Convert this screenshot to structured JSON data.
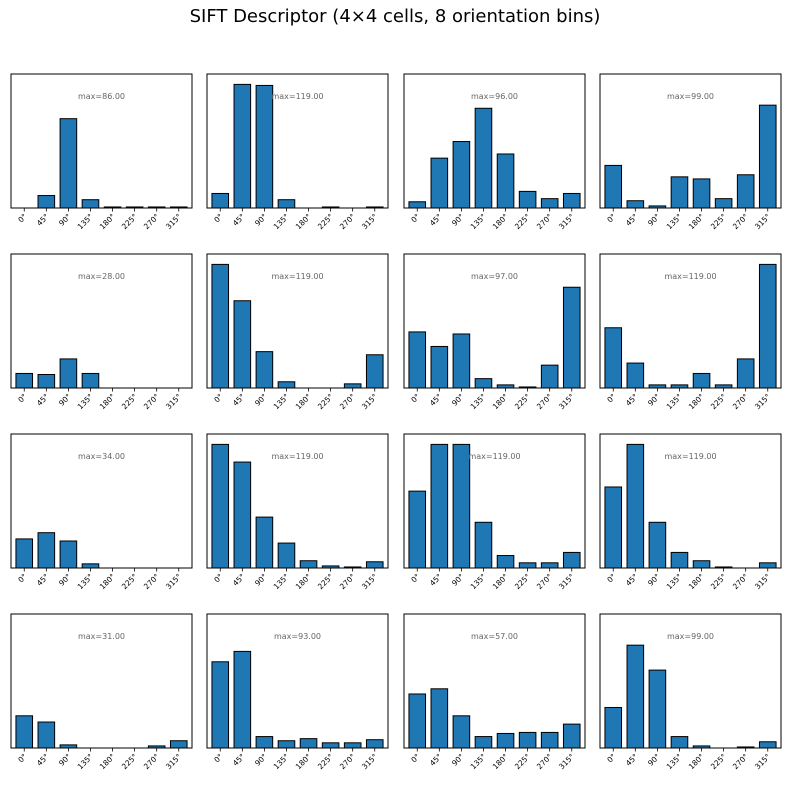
{
  "figure": {
    "title": "SIFT Descriptor (4×4 cells, 8 orientation bins)"
  },
  "style": {
    "bar_color": "#1f77b4",
    "edge_color": "#000000",
    "annotation_color": "#666666"
  },
  "chart_data": [
    {
      "type": "bar",
      "cell": "0,0",
      "categories": [
        "0°",
        "45°",
        "90°",
        "135°",
        "180°",
        "225°",
        "270°",
        "315°"
      ],
      "values": [
        0,
        12,
        86,
        8,
        1,
        1,
        1,
        1
      ],
      "annotation": "max=86.00",
      "ylim": [
        0,
        129
      ]
    },
    {
      "type": "bar",
      "cell": "0,1",
      "categories": [
        "0°",
        "45°",
        "90°",
        "135°",
        "180°",
        "225°",
        "270°",
        "315°"
      ],
      "values": [
        14,
        119,
        118,
        8,
        0,
        1,
        0,
        1
      ],
      "annotation": "max=119.00",
      "ylim": [
        0,
        129
      ]
    },
    {
      "type": "bar",
      "cell": "0,2",
      "categories": [
        "0°",
        "45°",
        "90°",
        "135°",
        "180°",
        "225°",
        "270°",
        "315°"
      ],
      "values": [
        6,
        48,
        64,
        96,
        52,
        16,
        9,
        14
      ],
      "annotation": "max=96.00",
      "ylim": [
        0,
        129
      ]
    },
    {
      "type": "bar",
      "cell": "0,3",
      "categories": [
        "0°",
        "45°",
        "90°",
        "135°",
        "180°",
        "225°",
        "270°",
        "315°"
      ],
      "values": [
        41,
        7,
        2,
        30,
        28,
        9,
        32,
        99
      ],
      "annotation": "max=99.00",
      "ylim": [
        0,
        129
      ]
    },
    {
      "type": "bar",
      "cell": "1,0",
      "categories": [
        "0°",
        "45°",
        "90°",
        "135°",
        "180°",
        "225°",
        "270°",
        "315°"
      ],
      "values": [
        14,
        13,
        28,
        14,
        0,
        0,
        0,
        0
      ],
      "annotation": "max=28.00",
      "ylim": [
        0,
        129
      ]
    },
    {
      "type": "bar",
      "cell": "1,1",
      "categories": [
        "0°",
        "45°",
        "90°",
        "135°",
        "180°",
        "225°",
        "270°",
        "315°"
      ],
      "values": [
        119,
        84,
        35,
        6,
        0,
        0,
        4,
        32
      ],
      "annotation": "max=119.00",
      "ylim": [
        0,
        129
      ]
    },
    {
      "type": "bar",
      "cell": "1,2",
      "categories": [
        "0°",
        "45°",
        "90°",
        "135°",
        "180°",
        "225°",
        "270°",
        "315°"
      ],
      "values": [
        54,
        40,
        52,
        9,
        3,
        1,
        22,
        97
      ],
      "annotation": "max=97.00",
      "ylim": [
        0,
        129
      ]
    },
    {
      "type": "bar",
      "cell": "1,3",
      "categories": [
        "0°",
        "45°",
        "90°",
        "135°",
        "180°",
        "225°",
        "270°",
        "315°"
      ],
      "values": [
        58,
        24,
        3,
        3,
        14,
        3,
        28,
        119
      ],
      "annotation": "max=119.00",
      "ylim": [
        0,
        129
      ]
    },
    {
      "type": "bar",
      "cell": "2,0",
      "categories": [
        "0°",
        "45°",
        "90°",
        "135°",
        "180°",
        "225°",
        "270°",
        "315°"
      ],
      "values": [
        28,
        34,
        26,
        4,
        0,
        0,
        0,
        0
      ],
      "annotation": "max=34.00",
      "ylim": [
        0,
        129
      ]
    },
    {
      "type": "bar",
      "cell": "2,1",
      "categories": [
        "0°",
        "45°",
        "90°",
        "135°",
        "180°",
        "225°",
        "270°",
        "315°"
      ],
      "values": [
        119,
        102,
        49,
        24,
        7,
        2,
        1,
        6
      ],
      "annotation": "max=119.00",
      "ylim": [
        0,
        129
      ]
    },
    {
      "type": "bar",
      "cell": "2,2",
      "categories": [
        "0°",
        "45°",
        "90°",
        "135°",
        "180°",
        "225°",
        "270°",
        "315°"
      ],
      "values": [
        74,
        119,
        119,
        44,
        12,
        5,
        5,
        15
      ],
      "annotation": "max=119.00",
      "ylim": [
        0,
        129
      ]
    },
    {
      "type": "bar",
      "cell": "2,3",
      "categories": [
        "0°",
        "45°",
        "90°",
        "135°",
        "180°",
        "225°",
        "270°",
        "315°"
      ],
      "values": [
        78,
        119,
        44,
        15,
        7,
        1,
        0,
        5
      ],
      "annotation": "max=119.00",
      "ylim": [
        0,
        129
      ]
    },
    {
      "type": "bar",
      "cell": "3,0",
      "categories": [
        "0°",
        "45°",
        "90°",
        "135°",
        "180°",
        "225°",
        "270°",
        "315°"
      ],
      "values": [
        31,
        25,
        3,
        0,
        0,
        0,
        2,
        7
      ],
      "annotation": "max=31.00",
      "ylim": [
        0,
        129
      ]
    },
    {
      "type": "bar",
      "cell": "3,1",
      "categories": [
        "0°",
        "45°",
        "90°",
        "135°",
        "180°",
        "225°",
        "270°",
        "315°"
      ],
      "values": [
        83,
        93,
        11,
        7,
        9,
        5,
        5,
        8
      ],
      "annotation": "max=93.00",
      "ylim": [
        0,
        129
      ]
    },
    {
      "type": "bar",
      "cell": "3,2",
      "categories": [
        "0°",
        "45°",
        "90°",
        "135°",
        "180°",
        "225°",
        "270°",
        "315°"
      ],
      "values": [
        52,
        57,
        31,
        11,
        14,
        15,
        15,
        23
      ],
      "annotation": "max=57.00",
      "ylim": [
        0,
        129
      ]
    },
    {
      "type": "bar",
      "cell": "3,3",
      "categories": [
        "0°",
        "45°",
        "90°",
        "135°",
        "180°",
        "225°",
        "270°",
        "315°"
      ],
      "values": [
        39,
        99,
        75,
        11,
        2,
        0,
        1,
        6
      ],
      "annotation": "max=99.00",
      "ylim": [
        0,
        129
      ]
    }
  ]
}
